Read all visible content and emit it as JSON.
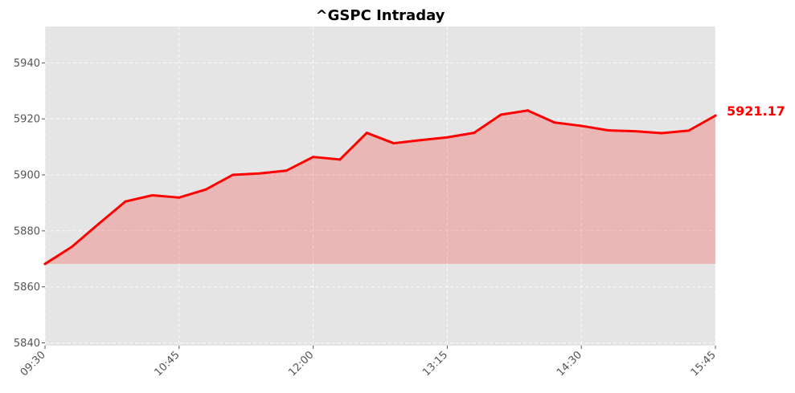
{
  "chart_data": {
    "type": "area",
    "title": "^GSPC Intraday",
    "xlabel": "",
    "ylabel": "",
    "x_tick_labels": [
      "09:30",
      "10:45",
      "12:00",
      "13:15",
      "14:30",
      "15:45"
    ],
    "y_ticks": [
      5840,
      5860,
      5880,
      5900,
      5920,
      5940
    ],
    "ylim": [
      5839,
      5953
    ],
    "grid": true,
    "colors": {
      "line": "#ff0000",
      "fill": "#ff0000",
      "plot_bg": "#e5e5e5",
      "grid": "#ffffff",
      "last_value": "#ff0000"
    },
    "fill_baseline": 5868.2,
    "x": [
      "09:30",
      "09:45",
      "10:00",
      "10:15",
      "10:30",
      "10:45",
      "11:00",
      "11:15",
      "11:30",
      "11:45",
      "12:00",
      "12:15",
      "12:30",
      "12:45",
      "13:00",
      "13:15",
      "13:30",
      "13:45",
      "14:00",
      "14:15",
      "14:30",
      "14:45",
      "15:00",
      "15:15",
      "15:30",
      "15:45"
    ],
    "series": [
      {
        "values": [
          5868.2,
          5874.3,
          5882.5,
          5890.5,
          5892.7,
          5891.9,
          5894.8,
          5900.0,
          5900.5,
          5901.5,
          5906.4,
          5905.5,
          5915.0,
          5911.3,
          5912.4,
          5913.4,
          5915.0,
          5921.5,
          5923.0,
          5918.7,
          5917.5,
          5915.9,
          5915.6,
          5914.9,
          5915.8,
          5921.17
        ]
      }
    ],
    "last_value_label": "5921.17"
  }
}
